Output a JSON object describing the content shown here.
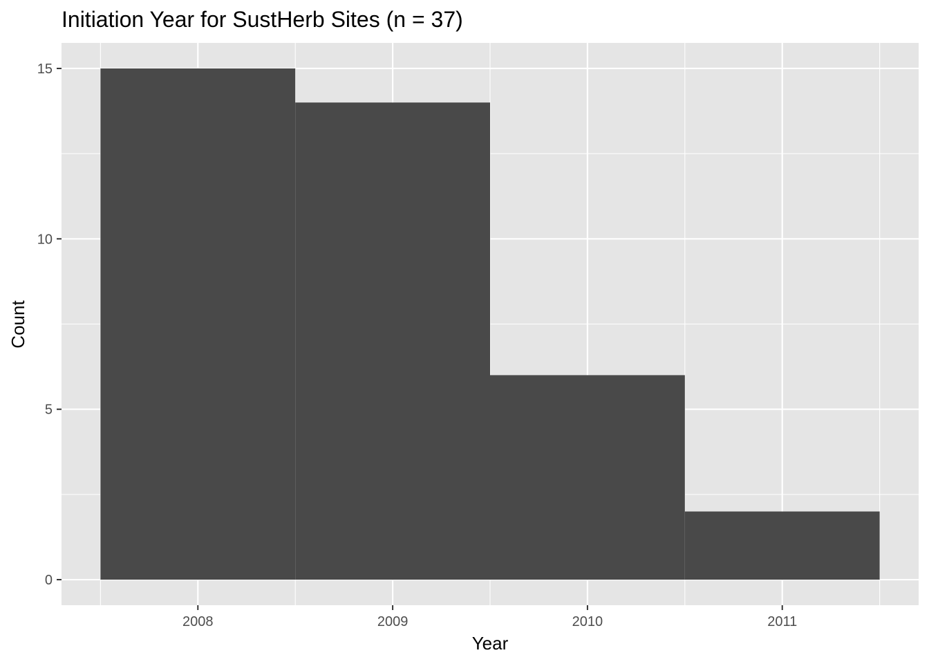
{
  "chart_data": {
    "type": "bar",
    "title": "Initiation Year for SustHerb Sites (n = 37)",
    "xlabel": "Year",
    "ylabel": "Count",
    "categories": [
      "2008",
      "2009",
      "2010",
      "2011"
    ],
    "values": [
      15,
      14,
      6,
      2
    ],
    "x_ticks": [
      "2008",
      "2009",
      "2010",
      "2011"
    ],
    "y_ticks": [
      "0",
      "5",
      "10",
      "15"
    ],
    "xlim": [
      2007.3,
      2011.7
    ],
    "ylim": [
      -0.75,
      15.75
    ],
    "grid": true,
    "legend": "none",
    "colors": {
      "bar": "#494949",
      "panel": "#e5e5e5",
      "grid": "#ffffff",
      "tick_text": "#4d4d4d",
      "tick_mark": "#333333"
    }
  }
}
